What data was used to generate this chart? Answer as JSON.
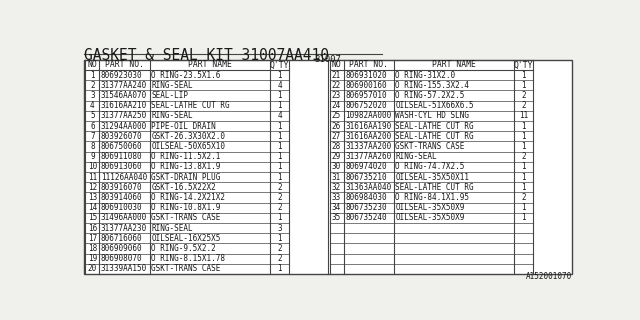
{
  "title": "GASKET & SEAL KIT 31007AA410",
  "subtitle": "31007",
  "footer": "A152001070",
  "headers": [
    "NO",
    "PART NO.",
    "PART NAME",
    "Q'TY"
  ],
  "left_rows": [
    [
      "1",
      "806923030",
      "O RING-23.5X1.6",
      "1"
    ],
    [
      "2",
      "31377AA240",
      "RING-SEAL",
      "4"
    ],
    [
      "3",
      "31546AA070",
      "SEAL-LIP",
      "1"
    ],
    [
      "4",
      "31616AA210",
      "SEAL-LATHE CUT RG",
      "1"
    ],
    [
      "5",
      "31377AA250",
      "RING-SEAL",
      "4"
    ],
    [
      "6",
      "31294AA000",
      "PIPE-OIL DRAIN",
      "1"
    ],
    [
      "7",
      "803926070",
      "GSKT-26.3X30X2.0",
      "1"
    ],
    [
      "8",
      "806750060",
      "OILSEAL-50X65X10",
      "1"
    ],
    [
      "9",
      "806911080",
      "O RING-11.5X2.1",
      "1"
    ],
    [
      "10",
      "806913060",
      "O RING-13.8X1.9",
      "1"
    ],
    [
      "11",
      "11126AA040",
      "GSKT-DRAIN PLUG",
      "1"
    ],
    [
      "12",
      "803916070",
      "GSKT-16.5X22X2",
      "2"
    ],
    [
      "13",
      "803914060",
      "O RING-14.2X21X2",
      "2"
    ],
    [
      "14",
      "806910030",
      "O RING-10.8X1.9",
      "2"
    ],
    [
      "15",
      "31496AA000",
      "GSKT-TRANS CASE",
      "1"
    ],
    [
      "16",
      "31377AA230",
      "RING-SEAL",
      "3"
    ],
    [
      "17",
      "806716060",
      "OILSEAL-16X25X5",
      "1"
    ],
    [
      "18",
      "806909060",
      "O RING-9.5X2.2",
      "2"
    ],
    [
      "19",
      "806908070",
      "O RING-8.15X1.78",
      "2"
    ],
    [
      "20",
      "31339AA150",
      "GSKT-TRANS CASE",
      "1"
    ]
  ],
  "right_rows": [
    [
      "21",
      "806931020",
      "O RING-31X2.0",
      "1"
    ],
    [
      "22",
      "806900160",
      "O RING-155.3X2.4",
      "1"
    ],
    [
      "23",
      "806957010",
      "O RING-57.2X2.5",
      "2"
    ],
    [
      "24",
      "806752020",
      "OILSEAL-51X66X6.5",
      "2"
    ],
    [
      "25",
      "10982AA000",
      "WASH-CYL HD SLNG",
      "11"
    ],
    [
      "26",
      "31616AA190",
      "SEAL-LATHE CUT RG",
      "1"
    ],
    [
      "27",
      "31616AA200",
      "SEAL-LATHE CUT RG",
      "1"
    ],
    [
      "28",
      "31337AA200",
      "GSKT-TRANS CASE",
      "1"
    ],
    [
      "29",
      "31377AA260",
      "RING-SEAL",
      "2"
    ],
    [
      "30",
      "806974020",
      "O RING-74.7X2.5",
      "1"
    ],
    [
      "31",
      "806735210",
      "OILSEAL-35X50X11",
      "1"
    ],
    [
      "32",
      "31363AA040",
      "SEAL-LATHE CUT RG",
      "1"
    ],
    [
      "33",
      "806984030",
      "O RING-84.1X1.95",
      "2"
    ],
    [
      "34",
      "806735230",
      "OILSEAL-35X50X9",
      "1"
    ],
    [
      "35",
      "806735240",
      "OILSEAL-35X50X9",
      "1"
    ]
  ],
  "bg_color": "#f0f0ec",
  "text_color": "#1a1a1a",
  "line_color": "#444444",
  "font_size": 5.5,
  "header_font_size": 5.8,
  "title_font_size": 10.5
}
